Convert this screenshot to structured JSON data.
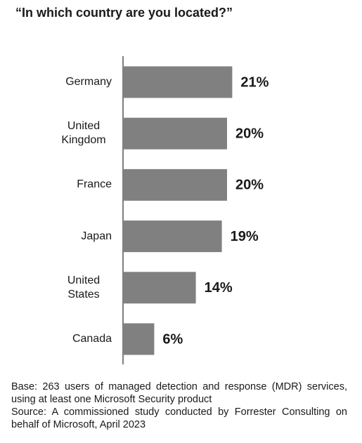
{
  "chart_data": {
    "type": "barh",
    "title": "“In which country are you located?”",
    "categories": [
      "Germany",
      "United Kingdom",
      "France",
      "Japan",
      "United States",
      "Canada"
    ],
    "values": [
      21,
      20,
      20,
      19,
      14,
      6
    ],
    "value_labels": [
      "21%",
      "20%",
      "20%",
      "19%",
      "14%",
      "6%"
    ],
    "color": "#808080",
    "notes": [
      "Base: 263 users of managed detection and response (MDR) services, using at least one Microsoft Security product",
      "Source: A commissioned study conducted by Forrester Consulting on behalf of Microsoft, April 2023"
    ]
  }
}
